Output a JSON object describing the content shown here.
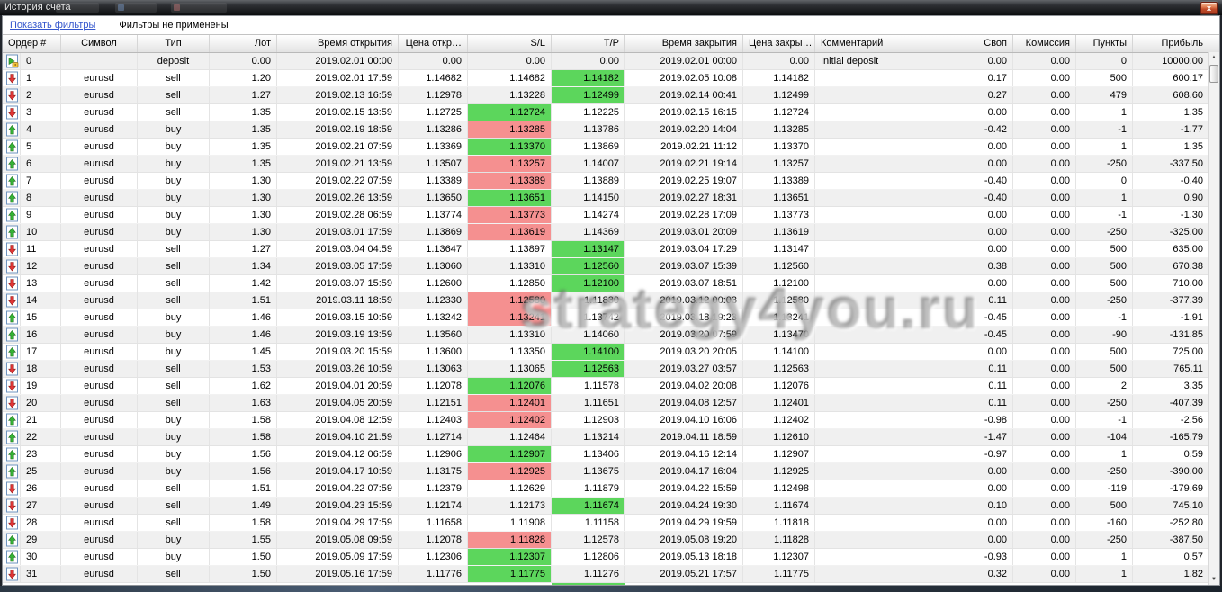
{
  "window": {
    "title": "История счета",
    "close_glyph": "x"
  },
  "filter_bar": {
    "link": "Показать фильтры",
    "status": "Фильтры не применены"
  },
  "watermark": "strategy4you.ru",
  "scrollbar": {
    "up_glyph": "▲",
    "down_glyph": "▼"
  },
  "colors": {
    "hl_green": "#5cd65c",
    "hl_red": "#f59090",
    "link_blue": "#3355cc",
    "row_alt": "#f0f0f0",
    "close_red": "#c14c2a"
  },
  "columns": [
    {
      "key": "order",
      "label": "Ордер #",
      "align": "left"
    },
    {
      "key": "symbol",
      "label": "Символ",
      "align": "center"
    },
    {
      "key": "type",
      "label": "Тип",
      "align": "center"
    },
    {
      "key": "lot",
      "label": "Лот",
      "align": "right"
    },
    {
      "key": "open_time",
      "label": "Время открытия",
      "align": "right"
    },
    {
      "key": "open_price",
      "label": "Цена откр…",
      "align": "right"
    },
    {
      "key": "sl",
      "label": "S/L",
      "align": "right"
    },
    {
      "key": "tp",
      "label": "T/P",
      "align": "right"
    },
    {
      "key": "close_time",
      "label": "Время закрытия",
      "align": "right"
    },
    {
      "key": "close_price",
      "label": "Цена закры…",
      "align": "right"
    },
    {
      "key": "comment",
      "label": "Комментарий",
      "align": "left"
    },
    {
      "key": "swap",
      "label": "Своп",
      "align": "right"
    },
    {
      "key": "commission",
      "label": "Комиссия",
      "align": "right"
    },
    {
      "key": "points",
      "label": "Пункты",
      "align": "right"
    },
    {
      "key": "profit",
      "label": "Прибыль",
      "align": "right"
    }
  ],
  "rows": [
    {
      "icon": "deposit-icon",
      "order": "0",
      "symbol": "",
      "type": "deposit",
      "lot": "0.00",
      "open_time": "2019.02.01 00:00",
      "open_price": "0.00",
      "sl": "0.00",
      "tp": "0.00",
      "close_time": "2019.02.01 00:00",
      "close_price": "0.00",
      "comment": "Initial deposit",
      "swap": "0.00",
      "commission": "0.00",
      "points": "0",
      "profit": "10000.00",
      "sl_hl": "",
      "tp_hl": ""
    },
    {
      "icon": "sell-order-icon",
      "order": "1",
      "symbol": "eurusd",
      "type": "sell",
      "lot": "1.20",
      "open_time": "2019.02.01 17:59",
      "open_price": "1.14682",
      "sl": "1.14682",
      "tp": "1.14182",
      "close_time": "2019.02.05 10:08",
      "close_price": "1.14182",
      "comment": "",
      "swap": "0.17",
      "commission": "0.00",
      "points": "500",
      "profit": "600.17",
      "sl_hl": "",
      "tp_hl": "green"
    },
    {
      "icon": "sell-order-icon",
      "order": "2",
      "symbol": "eurusd",
      "type": "sell",
      "lot": "1.27",
      "open_time": "2019.02.13 16:59",
      "open_price": "1.12978",
      "sl": "1.13228",
      "tp": "1.12499",
      "close_time": "2019.02.14 00:41",
      "close_price": "1.12499",
      "comment": "",
      "swap": "0.27",
      "commission": "0.00",
      "points": "479",
      "profit": "608.60",
      "sl_hl": "",
      "tp_hl": "green"
    },
    {
      "icon": "sell-order-icon",
      "order": "3",
      "symbol": "eurusd",
      "type": "sell",
      "lot": "1.35",
      "open_time": "2019.02.15 13:59",
      "open_price": "1.12725",
      "sl": "1.12724",
      "tp": "1.12225",
      "close_time": "2019.02.15 16:15",
      "close_price": "1.12724",
      "comment": "",
      "swap": "0.00",
      "commission": "0.00",
      "points": "1",
      "profit": "1.35",
      "sl_hl": "green",
      "tp_hl": ""
    },
    {
      "icon": "buy-order-icon",
      "order": "4",
      "symbol": "eurusd",
      "type": "buy",
      "lot": "1.35",
      "open_time": "2019.02.19 18:59",
      "open_price": "1.13286",
      "sl": "1.13285",
      "tp": "1.13786",
      "close_time": "2019.02.20 14:04",
      "close_price": "1.13285",
      "comment": "",
      "swap": "-0.42",
      "commission": "0.00",
      "points": "-1",
      "profit": "-1.77",
      "sl_hl": "red",
      "tp_hl": ""
    },
    {
      "icon": "buy-order-icon",
      "order": "5",
      "symbol": "eurusd",
      "type": "buy",
      "lot": "1.35",
      "open_time": "2019.02.21 07:59",
      "open_price": "1.13369",
      "sl": "1.13370",
      "tp": "1.13869",
      "close_time": "2019.02.21 11:12",
      "close_price": "1.13370",
      "comment": "",
      "swap": "0.00",
      "commission": "0.00",
      "points": "1",
      "profit": "1.35",
      "sl_hl": "green",
      "tp_hl": ""
    },
    {
      "icon": "buy-order-icon",
      "order": "6",
      "symbol": "eurusd",
      "type": "buy",
      "lot": "1.35",
      "open_time": "2019.02.21 13:59",
      "open_price": "1.13507",
      "sl": "1.13257",
      "tp": "1.14007",
      "close_time": "2019.02.21 19:14",
      "close_price": "1.13257",
      "comment": "",
      "swap": "0.00",
      "commission": "0.00",
      "points": "-250",
      "profit": "-337.50",
      "sl_hl": "red",
      "tp_hl": ""
    },
    {
      "icon": "buy-order-icon",
      "order": "7",
      "symbol": "eurusd",
      "type": "buy",
      "lot": "1.30",
      "open_time": "2019.02.22 07:59",
      "open_price": "1.13389",
      "sl": "1.13389",
      "tp": "1.13889",
      "close_time": "2019.02.25 19:07",
      "close_price": "1.13389",
      "comment": "",
      "swap": "-0.40",
      "commission": "0.00",
      "points": "0",
      "profit": "-0.40",
      "sl_hl": "red",
      "tp_hl": ""
    },
    {
      "icon": "buy-order-icon",
      "order": "8",
      "symbol": "eurusd",
      "type": "buy",
      "lot": "1.30",
      "open_time": "2019.02.26 13:59",
      "open_price": "1.13650",
      "sl": "1.13651",
      "tp": "1.14150",
      "close_time": "2019.02.27 18:31",
      "close_price": "1.13651",
      "comment": "",
      "swap": "-0.40",
      "commission": "0.00",
      "points": "1",
      "profit": "0.90",
      "sl_hl": "green",
      "tp_hl": ""
    },
    {
      "icon": "buy-order-icon",
      "order": "9",
      "symbol": "eurusd",
      "type": "buy",
      "lot": "1.30",
      "open_time": "2019.02.28 06:59",
      "open_price": "1.13774",
      "sl": "1.13773",
      "tp": "1.14274",
      "close_time": "2019.02.28 17:09",
      "close_price": "1.13773",
      "comment": "",
      "swap": "0.00",
      "commission": "0.00",
      "points": "-1",
      "profit": "-1.30",
      "sl_hl": "red",
      "tp_hl": ""
    },
    {
      "icon": "buy-order-icon",
      "order": "10",
      "symbol": "eurusd",
      "type": "buy",
      "lot": "1.30",
      "open_time": "2019.03.01 17:59",
      "open_price": "1.13869",
      "sl": "1.13619",
      "tp": "1.14369",
      "close_time": "2019.03.01 20:09",
      "close_price": "1.13619",
      "comment": "",
      "swap": "0.00",
      "commission": "0.00",
      "points": "-250",
      "profit": "-325.00",
      "sl_hl": "red",
      "tp_hl": ""
    },
    {
      "icon": "sell-order-icon",
      "order": "11",
      "symbol": "eurusd",
      "type": "sell",
      "lot": "1.27",
      "open_time": "2019.03.04 04:59",
      "open_price": "1.13647",
      "sl": "1.13897",
      "tp": "1.13147",
      "close_time": "2019.03.04 17:29",
      "close_price": "1.13147",
      "comment": "",
      "swap": "0.00",
      "commission": "0.00",
      "points": "500",
      "profit": "635.00",
      "sl_hl": "",
      "tp_hl": "green"
    },
    {
      "icon": "sell-order-icon",
      "order": "12",
      "symbol": "eurusd",
      "type": "sell",
      "lot": "1.34",
      "open_time": "2019.03.05 17:59",
      "open_price": "1.13060",
      "sl": "1.13310",
      "tp": "1.12560",
      "close_time": "2019.03.07 15:39",
      "close_price": "1.12560",
      "comment": "",
      "swap": "0.38",
      "commission": "0.00",
      "points": "500",
      "profit": "670.38",
      "sl_hl": "",
      "tp_hl": "green"
    },
    {
      "icon": "sell-order-icon",
      "order": "13",
      "symbol": "eurusd",
      "type": "sell",
      "lot": "1.42",
      "open_time": "2019.03.07 15:59",
      "open_price": "1.12600",
      "sl": "1.12850",
      "tp": "1.12100",
      "close_time": "2019.03.07 18:51",
      "close_price": "1.12100",
      "comment": "",
      "swap": "0.00",
      "commission": "0.00",
      "points": "500",
      "profit": "710.00",
      "sl_hl": "",
      "tp_hl": "green"
    },
    {
      "icon": "sell-order-icon",
      "order": "14",
      "symbol": "eurusd",
      "type": "sell",
      "lot": "1.51",
      "open_time": "2019.03.11 18:59",
      "open_price": "1.12330",
      "sl": "1.12580",
      "tp": "1.11830",
      "close_time": "2019.03.12 00:03",
      "close_price": "1.12580",
      "comment": "",
      "swap": "0.11",
      "commission": "0.00",
      "points": "-250",
      "profit": "-377.39",
      "sl_hl": "red",
      "tp_hl": ""
    },
    {
      "icon": "buy-order-icon",
      "order": "15",
      "symbol": "eurusd",
      "type": "buy",
      "lot": "1.46",
      "open_time": "2019.03.15 10:59",
      "open_price": "1.13242",
      "sl": "1.13241",
      "tp": "1.13742",
      "close_time": "2019.03.18 19:23",
      "close_price": "1.13241",
      "comment": "",
      "swap": "-0.45",
      "commission": "0.00",
      "points": "-1",
      "profit": "-1.91",
      "sl_hl": "red",
      "tp_hl": ""
    },
    {
      "icon": "buy-order-icon",
      "order": "16",
      "symbol": "eurusd",
      "type": "buy",
      "lot": "1.46",
      "open_time": "2019.03.19 13:59",
      "open_price": "1.13560",
      "sl": "1.13310",
      "tp": "1.14060",
      "close_time": "2019.03.20 07:59",
      "close_price": "1.13470",
      "comment": "",
      "swap": "-0.45",
      "commission": "0.00",
      "points": "-90",
      "profit": "-131.85",
      "sl_hl": "",
      "tp_hl": ""
    },
    {
      "icon": "buy-order-icon",
      "order": "17",
      "symbol": "eurusd",
      "type": "buy",
      "lot": "1.45",
      "open_time": "2019.03.20 15:59",
      "open_price": "1.13600",
      "sl": "1.13350",
      "tp": "1.14100",
      "close_time": "2019.03.20 20:05",
      "close_price": "1.14100",
      "comment": "",
      "swap": "0.00",
      "commission": "0.00",
      "points": "500",
      "profit": "725.00",
      "sl_hl": "",
      "tp_hl": "green"
    },
    {
      "icon": "sell-order-icon",
      "order": "18",
      "symbol": "eurusd",
      "type": "sell",
      "lot": "1.53",
      "open_time": "2019.03.26 10:59",
      "open_price": "1.13063",
      "sl": "1.13065",
      "tp": "1.12563",
      "close_time": "2019.03.27 03:57",
      "close_price": "1.12563",
      "comment": "",
      "swap": "0.11",
      "commission": "0.00",
      "points": "500",
      "profit": "765.11",
      "sl_hl": "",
      "tp_hl": "green"
    },
    {
      "icon": "sell-order-icon",
      "order": "19",
      "symbol": "eurusd",
      "type": "sell",
      "lot": "1.62",
      "open_time": "2019.04.01 20:59",
      "open_price": "1.12078",
      "sl": "1.12076",
      "tp": "1.11578",
      "close_time": "2019.04.02 20:08",
      "close_price": "1.12076",
      "comment": "",
      "swap": "0.11",
      "commission": "0.00",
      "points": "2",
      "profit": "3.35",
      "sl_hl": "green",
      "tp_hl": ""
    },
    {
      "icon": "sell-order-icon",
      "order": "20",
      "symbol": "eurusd",
      "type": "sell",
      "lot": "1.63",
      "open_time": "2019.04.05 20:59",
      "open_price": "1.12151",
      "sl": "1.12401",
      "tp": "1.11651",
      "close_time": "2019.04.08 12:57",
      "close_price": "1.12401",
      "comment": "",
      "swap": "0.11",
      "commission": "0.00",
      "points": "-250",
      "profit": "-407.39",
      "sl_hl": "red",
      "tp_hl": ""
    },
    {
      "icon": "buy-order-icon",
      "order": "21",
      "symbol": "eurusd",
      "type": "buy",
      "lot": "1.58",
      "open_time": "2019.04.08 12:59",
      "open_price": "1.12403",
      "sl": "1.12402",
      "tp": "1.12903",
      "close_time": "2019.04.10 16:06",
      "close_price": "1.12402",
      "comment": "",
      "swap": "-0.98",
      "commission": "0.00",
      "points": "-1",
      "profit": "-2.56",
      "sl_hl": "red",
      "tp_hl": ""
    },
    {
      "icon": "buy-order-icon",
      "order": "22",
      "symbol": "eurusd",
      "type": "buy",
      "lot": "1.58",
      "open_time": "2019.04.10 21:59",
      "open_price": "1.12714",
      "sl": "1.12464",
      "tp": "1.13214",
      "close_time": "2019.04.11 18:59",
      "close_price": "1.12610",
      "comment": "",
      "swap": "-1.47",
      "commission": "0.00",
      "points": "-104",
      "profit": "-165.79",
      "sl_hl": "",
      "tp_hl": ""
    },
    {
      "icon": "buy-order-icon",
      "order": "23",
      "symbol": "eurusd",
      "type": "buy",
      "lot": "1.56",
      "open_time": "2019.04.12 06:59",
      "open_price": "1.12906",
      "sl": "1.12907",
      "tp": "1.13406",
      "close_time": "2019.04.16 12:14",
      "close_price": "1.12907",
      "comment": "",
      "swap": "-0.97",
      "commission": "0.00",
      "points": "1",
      "profit": "0.59",
      "sl_hl": "green",
      "tp_hl": ""
    },
    {
      "icon": "buy-order-icon",
      "order": "25",
      "symbol": "eurusd",
      "type": "buy",
      "lot": "1.56",
      "open_time": "2019.04.17 10:59",
      "open_price": "1.13175",
      "sl": "1.12925",
      "tp": "1.13675",
      "close_time": "2019.04.17 16:04",
      "close_price": "1.12925",
      "comment": "",
      "swap": "0.00",
      "commission": "0.00",
      "points": "-250",
      "profit": "-390.00",
      "sl_hl": "red",
      "tp_hl": ""
    },
    {
      "icon": "sell-order-icon",
      "order": "26",
      "symbol": "eurusd",
      "type": "sell",
      "lot": "1.51",
      "open_time": "2019.04.22 07:59",
      "open_price": "1.12379",
      "sl": "1.12629",
      "tp": "1.11879",
      "close_time": "2019.04.22 15:59",
      "close_price": "1.12498",
      "comment": "",
      "swap": "0.00",
      "commission": "0.00",
      "points": "-119",
      "profit": "-179.69",
      "sl_hl": "",
      "tp_hl": ""
    },
    {
      "icon": "sell-order-icon",
      "order": "27",
      "symbol": "eurusd",
      "type": "sell",
      "lot": "1.49",
      "open_time": "2019.04.23 15:59",
      "open_price": "1.12174",
      "sl": "1.12173",
      "tp": "1.11674",
      "close_time": "2019.04.24 19:30",
      "close_price": "1.11674",
      "comment": "",
      "swap": "0.10",
      "commission": "0.00",
      "points": "500",
      "profit": "745.10",
      "sl_hl": "",
      "tp_hl": "green"
    },
    {
      "icon": "sell-order-icon",
      "order": "28",
      "symbol": "eurusd",
      "type": "sell",
      "lot": "1.58",
      "open_time": "2019.04.29 17:59",
      "open_price": "1.11658",
      "sl": "1.11908",
      "tp": "1.11158",
      "close_time": "2019.04.29 19:59",
      "close_price": "1.11818",
      "comment": "",
      "swap": "0.00",
      "commission": "0.00",
      "points": "-160",
      "profit": "-252.80",
      "sl_hl": "",
      "tp_hl": ""
    },
    {
      "icon": "buy-order-icon",
      "order": "29",
      "symbol": "eurusd",
      "type": "buy",
      "lot": "1.55",
      "open_time": "2019.05.08 09:59",
      "open_price": "1.12078",
      "sl": "1.11828",
      "tp": "1.12578",
      "close_time": "2019.05.08 19:20",
      "close_price": "1.11828",
      "comment": "",
      "swap": "0.00",
      "commission": "0.00",
      "points": "-250",
      "profit": "-387.50",
      "sl_hl": "red",
      "tp_hl": ""
    },
    {
      "icon": "buy-order-icon",
      "order": "30",
      "symbol": "eurusd",
      "type": "buy",
      "lot": "1.50",
      "open_time": "2019.05.09 17:59",
      "open_price": "1.12306",
      "sl": "1.12307",
      "tp": "1.12806",
      "close_time": "2019.05.13 18:18",
      "close_price": "1.12307",
      "comment": "",
      "swap": "-0.93",
      "commission": "0.00",
      "points": "1",
      "profit": "0.57",
      "sl_hl": "green",
      "tp_hl": ""
    },
    {
      "icon": "sell-order-icon",
      "order": "31",
      "symbol": "eurusd",
      "type": "sell",
      "lot": "1.50",
      "open_time": "2019.05.16 17:59",
      "open_price": "1.11776",
      "sl": "1.11775",
      "tp": "1.11276",
      "close_time": "2019.05.21 17:57",
      "close_price": "1.11775",
      "comment": "",
      "swap": "0.32",
      "commission": "0.00",
      "points": "1",
      "profit": "1.82",
      "sl_hl": "green",
      "tp_hl": ""
    }
  ],
  "partial_row": {
    "tp_hl": "green"
  }
}
